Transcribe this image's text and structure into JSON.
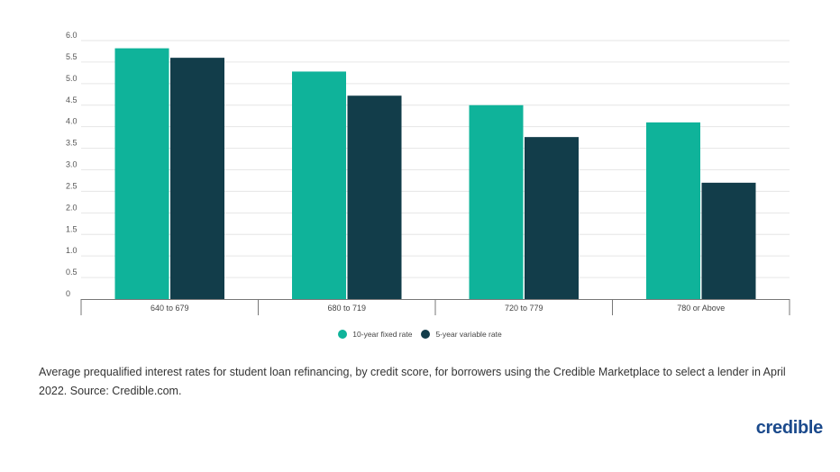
{
  "chart_data": {
    "type": "bar",
    "categories": [
      "640 to 679",
      "680 to 719",
      "720 to 779",
      "780 or Above"
    ],
    "series": [
      {
        "name": "10-year fixed rate",
        "color": "#0fb39a",
        "values": [
          5.82,
          5.28,
          4.5,
          4.1
        ]
      },
      {
        "name": "5-year variable rate",
        "color": "#123d4a",
        "values": [
          5.6,
          4.72,
          3.76,
          2.7
        ]
      }
    ],
    "y_ticks": [
      "0",
      "0.5",
      "1.0",
      "1.5",
      "2.0",
      "2.5",
      "3.0",
      "3.5",
      "4.0",
      "4.5",
      "5.0",
      "5.5",
      "6.0"
    ],
    "ylim": [
      0,
      6
    ],
    "grid": true,
    "legend_position": "bottom-center",
    "title": "",
    "xlabel": "",
    "ylabel": ""
  },
  "caption": "Average prequalified interest rates for student loan refinancing, by credit score, for borrowers using the Credible Marketplace to select a lender in April 2022. Source: Credible.com.",
  "brand": {
    "name": "credible",
    "color": "#1b4a8c"
  }
}
